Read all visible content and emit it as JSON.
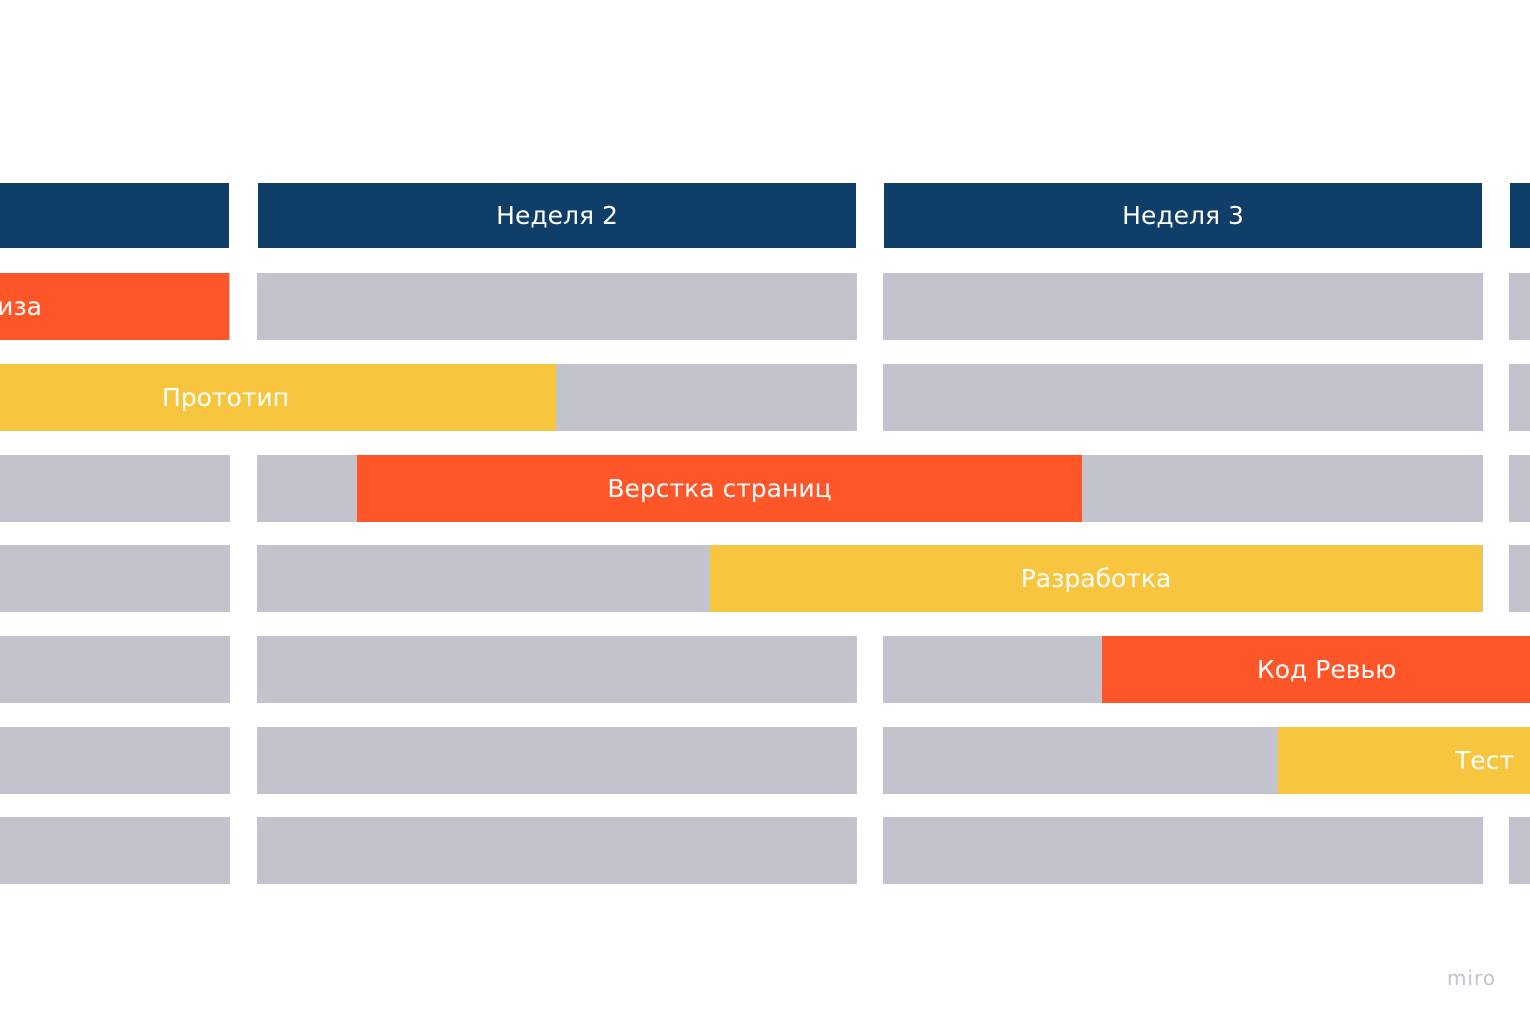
{
  "diagram": {
    "weeks": [
      {
        "id": "w1",
        "label": ""
      },
      {
        "id": "w2",
        "label": "Неделя 2"
      },
      {
        "id": "w3",
        "label": "Неделя 3"
      },
      {
        "id": "w4",
        "label": ""
      }
    ],
    "tasks": [
      {
        "id": "sketch",
        "label": "киза",
        "color": "#fe5629"
      },
      {
        "id": "prototype",
        "label": "Прототип",
        "color": "#f8c53f"
      },
      {
        "id": "layout",
        "label": "Верстка страниц",
        "color": "#fe5629"
      },
      {
        "id": "development",
        "label": "Разработка",
        "color": "#f8c53f"
      },
      {
        "id": "code-review",
        "label": "Код Ревью",
        "color": "#fe5629"
      },
      {
        "id": "test",
        "label": "Тест",
        "color": "#f8c53f"
      }
    ],
    "colors": {
      "header": "#0f3e69",
      "track": "#c3c3cd",
      "task_red": "#fe5629",
      "task_yellow": "#f8c53f"
    }
  },
  "watermark": "miro"
}
